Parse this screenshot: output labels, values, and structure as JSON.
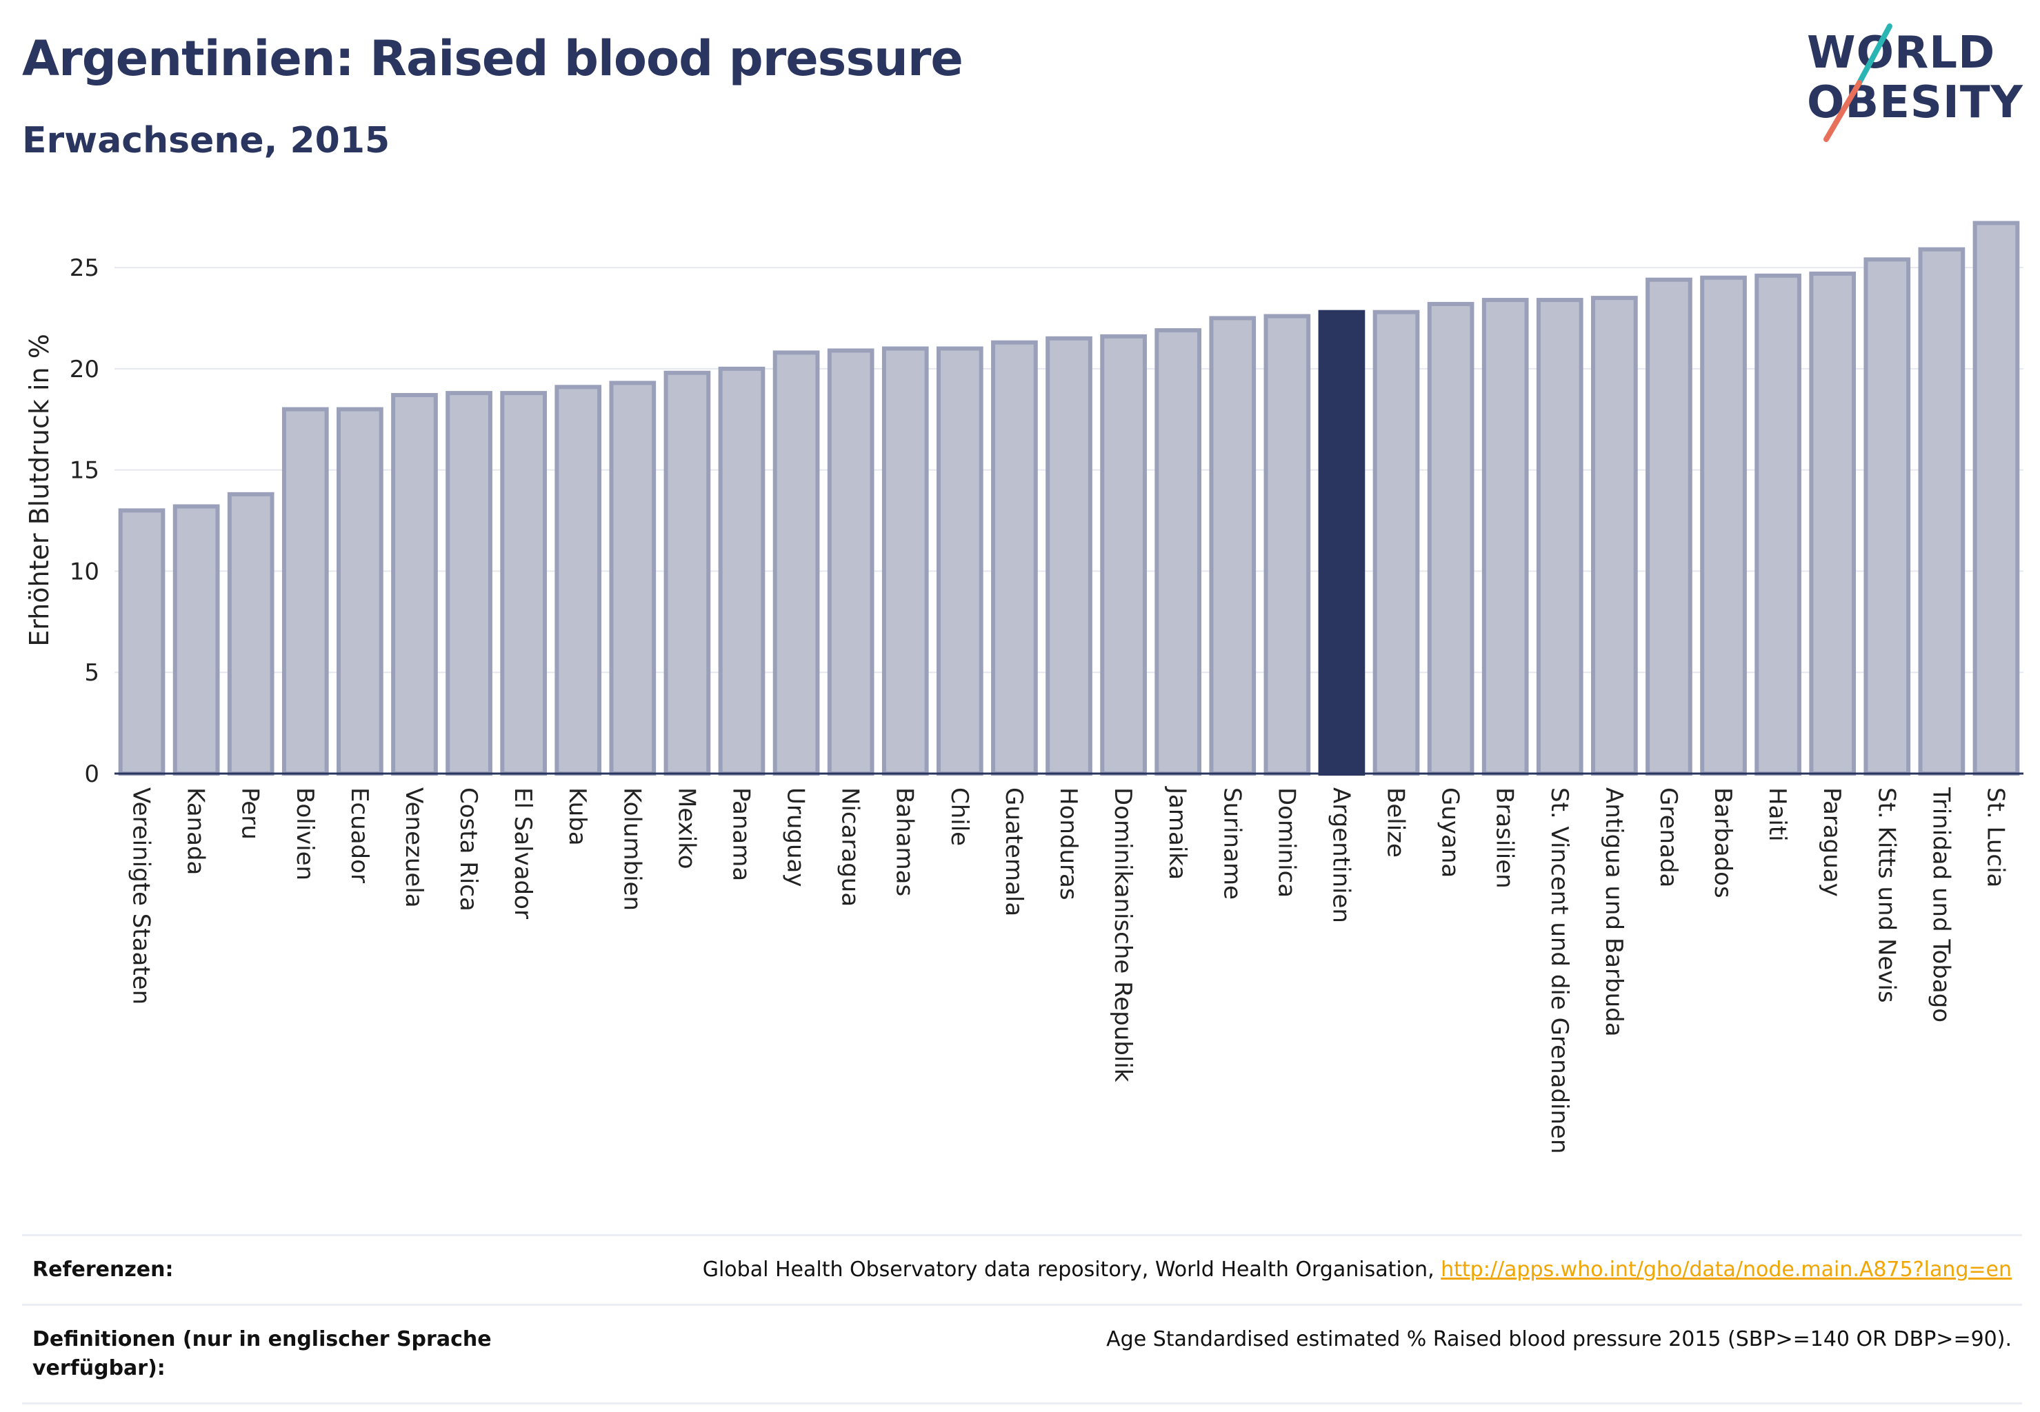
{
  "header": {
    "title": "Argentinien: Raised blood pressure",
    "subtitle": "Erwachsene, 2015"
  },
  "logo": {
    "line1": "WORLD",
    "line2": "OBESITY"
  },
  "colors": {
    "bar_fill": "#bcc0cf",
    "bar_stroke": "#9aa0b9",
    "highlight": "#2a3560",
    "grid": "#e6e8ef",
    "logo_teal": "#2ab5b5",
    "logo_coral": "#e8705a"
  },
  "chart_data": {
    "type": "bar",
    "highlight": "Argentinien",
    "ylabel": "Erhöhter Blutdruck in %",
    "ylim": [
      0,
      28
    ],
    "yticks": [
      0,
      5,
      10,
      15,
      20,
      25
    ],
    "grid": true,
    "categories": [
      "Vereinigte Staaten",
      "Kanada",
      "Peru",
      "Bolivien",
      "Ecuador",
      "Venezuela",
      "Costa Rica",
      "El Salvador",
      "Kuba",
      "Kolumbien",
      "Mexiko",
      "Panama",
      "Uruguay",
      "Nicaragua",
      "Bahamas",
      "Chile",
      "Guatemala",
      "Honduras",
      "Dominikanische Republik",
      "Jamaika",
      "Suriname",
      "Dominica",
      "Argentinien",
      "Belize",
      "Guyana",
      "Brasilien",
      "St. Vincent und die Grenadinen",
      "Antigua und Barbuda",
      "Grenada",
      "Barbados",
      "Haiti",
      "Paraguay",
      "St. Kitts und Nevis",
      "Trinidad und Tobago",
      "St. Lucia"
    ],
    "values": [
      13.0,
      13.2,
      13.8,
      18.0,
      18.0,
      18.7,
      18.8,
      18.8,
      19.1,
      19.3,
      19.8,
      20.0,
      20.8,
      20.9,
      21.0,
      21.0,
      21.3,
      21.5,
      21.6,
      21.9,
      22.5,
      22.6,
      22.8,
      22.8,
      23.2,
      23.4,
      23.4,
      23.5,
      24.4,
      24.5,
      24.6,
      24.7,
      25.4,
      25.9,
      27.2
    ]
  },
  "references": {
    "ref_label": "Referenzen:",
    "ref_text": "Global Health Observatory data repository, World Health Organisation, ",
    "ref_link": "http://apps.who.int/gho/data/node.main.A875?lang=en",
    "def_label": "Definitionen (nur in englischer Sprache verfügbar):",
    "def_text": "Age Standardised estimated % Raised blood pressure 2015 (SBP>=140 OR DBP>=90)."
  }
}
